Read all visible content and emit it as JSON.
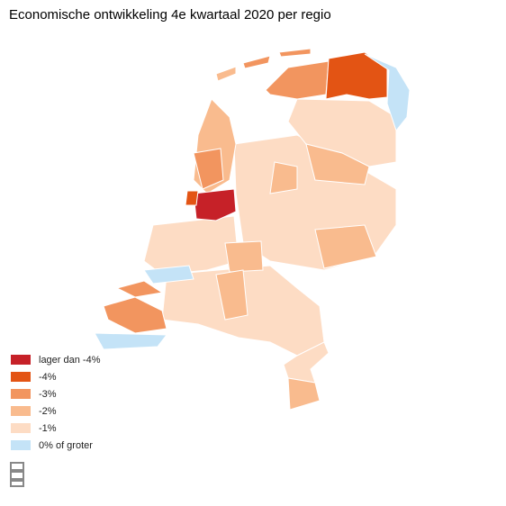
{
  "title": "Economische ontwikkeling 4e kwartaal 2020 per regio",
  "legend": [
    {
      "label": "lager dan -4%",
      "color": "#c62128"
    },
    {
      "label": "-4%",
      "color": "#e35414"
    },
    {
      "label": "-3%",
      "color": "#f2955f"
    },
    {
      "label": "-2%",
      "color": "#f9bb8e"
    },
    {
      "label": "-1%",
      "color": "#fddcc4"
    },
    {
      "label": "0% of groter",
      "color": "#c4e3f7"
    }
  ]
}
